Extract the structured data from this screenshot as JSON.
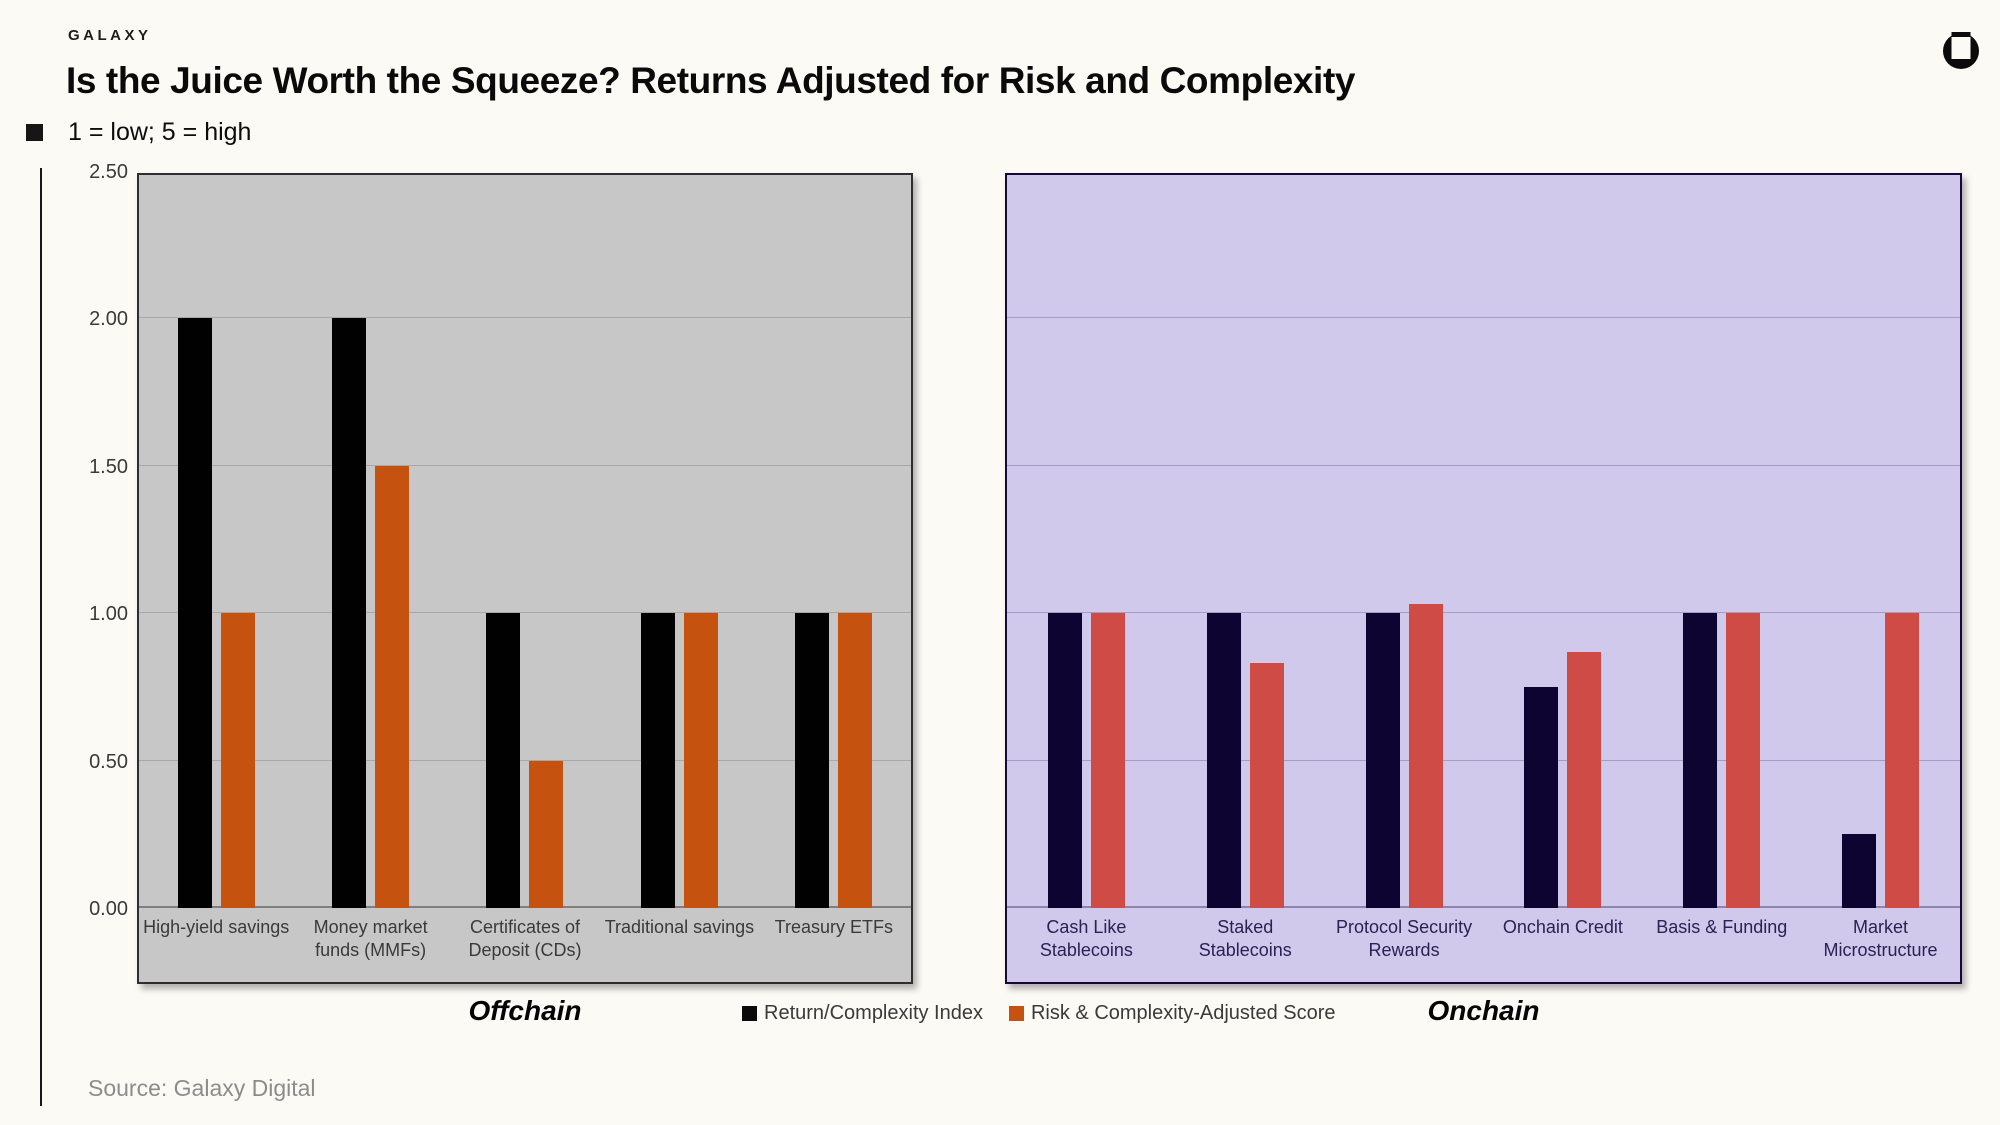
{
  "header": {
    "brand": "GALAXY",
    "title": "Is the Juice Worth the Squeeze? Returns Adjusted for Risk and Complexity",
    "subtitle": "1 = low; 5 = high"
  },
  "source": "Source: Galaxy Digital",
  "legend": [
    {
      "label": "Return/Complexity Index",
      "color": "#0a0a0a"
    },
    {
      "label": "Risk & Complexity-Adjusted Score",
      "color": "#C5520E"
    }
  ],
  "icons": {
    "galaxy_logo": "galaxy-circle-square-mark"
  },
  "chart_data": {
    "type": "bar",
    "title": "Is the Juice Worth the Squeeze? Returns Adjusted for Risk and Complexity",
    "subtitle": "1 = low; 5 = high",
    "ylim": [
      0,
      2.5
    ],
    "ytick_labels": [
      "2.50",
      "2.00",
      "1.50",
      "1.00",
      "0.50",
      "0.00"
    ],
    "ytick_values": [
      2.5,
      2.0,
      1.5,
      1.0,
      0.5,
      0.0
    ],
    "grid": true,
    "legend_position": "bottom-center",
    "panels": [
      {
        "name": "Offchain",
        "bg": "#C7C7C7",
        "gridline_color": "#A8A8A8",
        "axisline_color": "#7f7f7f",
        "label_color": "#3a3a3a",
        "series_colors": [
          "#010101",
          "#C5520E"
        ],
        "categories": [
          "High-yield savings",
          "Money market\nfunds (MMFs)",
          "Certificates of\nDeposit (CDs)",
          "Traditional savings",
          "Treasury ETFs"
        ],
        "series": [
          {
            "name": "Return/Complexity Index",
            "values": [
              2.0,
              2.0,
              1.0,
              1.0,
              1.0
            ]
          },
          {
            "name": "Risk & Complexity-Adjusted Score",
            "values": [
              1.0,
              1.5,
              0.5,
              1.0,
              1.0
            ]
          }
        ]
      },
      {
        "name": "Onchain",
        "bg": "#D0C9EC",
        "gridline_color": "#A49CC2",
        "axisline_color": "#8D85AC",
        "label_color": "#2B2153",
        "series_colors": [
          "#0D0431",
          "#CF4B46"
        ],
        "categories": [
          "Cash Like\nStablecoins",
          "Staked\nStablecoins",
          "Protocol Security\nRewards",
          "Onchain Credit",
          "Basis & Funding",
          "Market\nMicrostructure"
        ],
        "series": [
          {
            "name": "Return/Complexity Index",
            "values": [
              1.0,
              1.0,
              1.0,
              0.75,
              1.0,
              0.25
            ]
          },
          {
            "name": "Risk & Complexity-Adjusted Score",
            "values": [
              1.0,
              0.83,
              1.03,
              0.87,
              1.0,
              1.0
            ]
          }
        ]
      }
    ]
  }
}
